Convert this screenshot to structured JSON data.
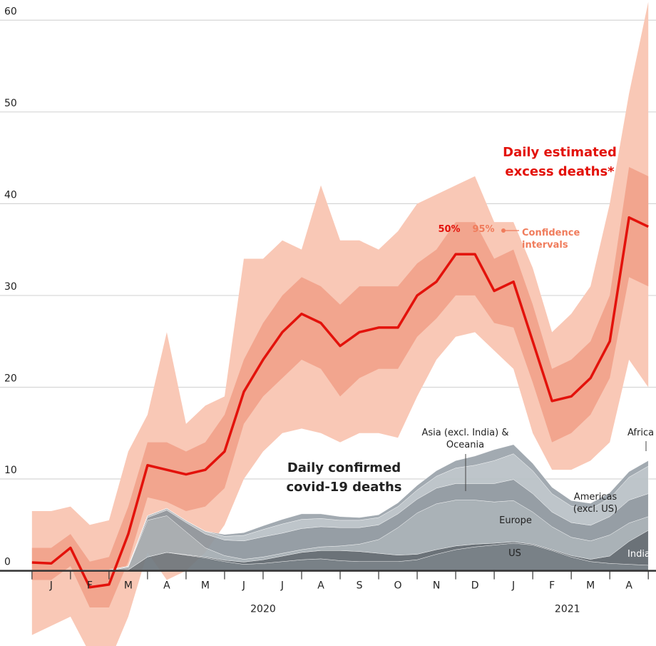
{
  "chart_data": {
    "type": "line",
    "x": [
      0,
      0.5,
      1,
      1.5,
      2,
      2.5,
      3,
      3.5,
      4,
      4.5,
      5,
      5.5,
      6,
      6.5,
      7,
      7.5,
      8,
      8.5,
      9,
      9.5,
      10,
      10.5,
      11,
      11.5,
      12,
      12.5,
      13,
      13.5,
      14,
      14.5,
      15,
      15.5,
      16
    ],
    "xlim": [
      -0.83,
      16.2
    ],
    "xticks": [
      {
        "value": 0.5,
        "label": "J"
      },
      {
        "value": 1.5,
        "label": "F"
      },
      {
        "value": 2.5,
        "label": "M"
      },
      {
        "value": 3.5,
        "label": "A"
      },
      {
        "value": 4.5,
        "label": "M"
      },
      {
        "value": 5.5,
        "label": "J"
      },
      {
        "value": 6.5,
        "label": "J"
      },
      {
        "value": 7.5,
        "label": "A"
      },
      {
        "value": 8.5,
        "label": "S"
      },
      {
        "value": 9.5,
        "label": "O"
      },
      {
        "value": 10.5,
        "label": "N"
      },
      {
        "value": 11.5,
        "label": "D"
      },
      {
        "value": 12.5,
        "label": "J"
      },
      {
        "value": 13.5,
        "label": "F"
      },
      {
        "value": 14.5,
        "label": "M"
      },
      {
        "value": 15.5,
        "label": "A"
      }
    ],
    "years": [
      {
        "value": 6,
        "label": "2020"
      },
      {
        "value": 13.9,
        "label": "2021"
      }
    ],
    "ylim": [
      -8.2,
      62.2
    ],
    "yticks": [
      0,
      10,
      20,
      30,
      40,
      50,
      60
    ],
    "grid": true,
    "excess": {
      "name": "Daily estimated excess deaths*",
      "color": "#e3120b",
      "values": [
        0.9,
        0.8,
        2.5,
        -1.8,
        -1.5,
        4,
        11.5,
        11,
        10.5,
        11,
        13,
        19.5,
        23,
        26,
        28,
        27,
        24.5,
        26,
        26.5,
        26.5,
        30,
        31.5,
        34.5,
        34.5,
        30.5,
        31.5,
        25,
        18.5,
        19,
        21,
        25,
        38.5,
        37.5
      ],
      "ci_label": "Confidence intervals",
      "ci50": {
        "name": "50%",
        "color": "#f2a58e",
        "hi": [
          2.5,
          2.5,
          4,
          1,
          1.5,
          7,
          14,
          14,
          13,
          14,
          17,
          23,
          27,
          30,
          32,
          31,
          29,
          31,
          31,
          31,
          33.5,
          35,
          38,
          38,
          34,
          35,
          29,
          22,
          23,
          25,
          30,
          44,
          43
        ],
        "lo": [
          -1,
          -1,
          0.5,
          -4,
          -4,
          1,
          8,
          7.5,
          6.5,
          7,
          9,
          16,
          19,
          21,
          23,
          22,
          19,
          21,
          22,
          22,
          25.5,
          27.5,
          30,
          30,
          27,
          26.5,
          20.5,
          14,
          15,
          17,
          21,
          32,
          31
        ]
      },
      "ci95": {
        "name": "95%",
        "color": "#f9c8b6",
        "hi": [
          6.5,
          6.5,
          7,
          5,
          5.5,
          13,
          17,
          26,
          16,
          18,
          19,
          34,
          34,
          36,
          35,
          42,
          36,
          36,
          35,
          37,
          40,
          41,
          42,
          43,
          38,
          38,
          33,
          26,
          28,
          31,
          40,
          52,
          62
        ],
        "lo": [
          -7,
          -6,
          -5,
          -9,
          -10,
          -5,
          2,
          -1,
          0,
          2,
          5,
          10,
          13,
          15,
          15.5,
          15,
          14,
          15,
          15,
          14.5,
          19,
          23,
          25.5,
          26,
          24,
          22,
          15,
          11,
          11,
          12,
          14,
          23,
          20
        ]
      }
    },
    "confirmed": {
      "name": "Daily confirmed covid-19 deaths",
      "series": [
        {
          "name": "US",
          "color": "#6e767d",
          "values": [
            0,
            0,
            0,
            0,
            0,
            0.1,
            1.5,
            2,
            1.7,
            1.4,
            1,
            0.7,
            0.8,
            1,
            1.2,
            1.3,
            1.1,
            1,
            1,
            1,
            1.2,
            1.8,
            2.3,
            2.6,
            2.8,
            3,
            2.8,
            2.2,
            1.5,
            1,
            0.8,
            0.7,
            0.6
          ]
        },
        {
          "name": "India",
          "color": "#5e666d",
          "values": [
            0,
            0,
            0,
            0,
            0,
            0,
            0,
            0,
            0.05,
            0.1,
            0.15,
            0.25,
            0.4,
            0.6,
            0.8,
            0.9,
            1.1,
            1.1,
            0.9,
            0.7,
            0.6,
            0.5,
            0.4,
            0.3,
            0.2,
            0.15,
            0.1,
            0.1,
            0.15,
            0.25,
            0.8,
            2.5,
            3.8
          ]
        },
        {
          "name": "Europe",
          "color": "#a3abb1",
          "values": [
            0,
            0,
            0,
            0,
            0,
            0.3,
            4,
            4,
            2.5,
            1,
            0.5,
            0.3,
            0.3,
            0.3,
            0.3,
            0.4,
            0.5,
            0.8,
            1.5,
            3,
            4.5,
            5,
            5,
            4.8,
            4.5,
            4.5,
            3.5,
            2.5,
            2,
            2,
            2.3,
            2,
            1.5
          ]
        },
        {
          "name": "Americas (excl. US)",
          "color": "#8d969d",
          "values": [
            0,
            0,
            0,
            0,
            0,
            0,
            0.3,
            0.6,
            1,
            1.5,
            1.7,
            2,
            2.2,
            2.2,
            2.3,
            2.2,
            2,
            1.8,
            1.6,
            1.5,
            1.5,
            1.7,
            1.8,
            1.8,
            2,
            2.3,
            2,
            1.6,
            1.6,
            1.7,
            2,
            2.5,
            2.5
          ]
        },
        {
          "name": "Asia (excl. India) & Oceania",
          "color": "#b9c0c5",
          "values": [
            0,
            0,
            0.05,
            0.1,
            0.1,
            0.1,
            0.2,
            0.2,
            0.2,
            0.3,
            0.4,
            0.6,
            0.8,
            1,
            1,
            0.9,
            0.8,
            0.8,
            0.8,
            0.8,
            1,
            1.3,
            1.7,
            2,
            2.5,
            2.8,
            2.5,
            2,
            1.8,
            1.8,
            2,
            2.5,
            3
          ]
        },
        {
          "name": "Africa",
          "color": "#9aa3aa",
          "values": [
            0,
            0,
            0,
            0,
            0,
            0,
            0,
            0,
            0,
            0,
            0.2,
            0.3,
            0.4,
            0.5,
            0.6,
            0.5,
            0.4,
            0.3,
            0.3,
            0.4,
            0.5,
            0.6,
            0.8,
            1,
            1.2,
            1,
            0.8,
            0.7,
            0.6,
            0.6,
            0.6,
            0.6,
            0.6
          ]
        }
      ]
    }
  }
}
